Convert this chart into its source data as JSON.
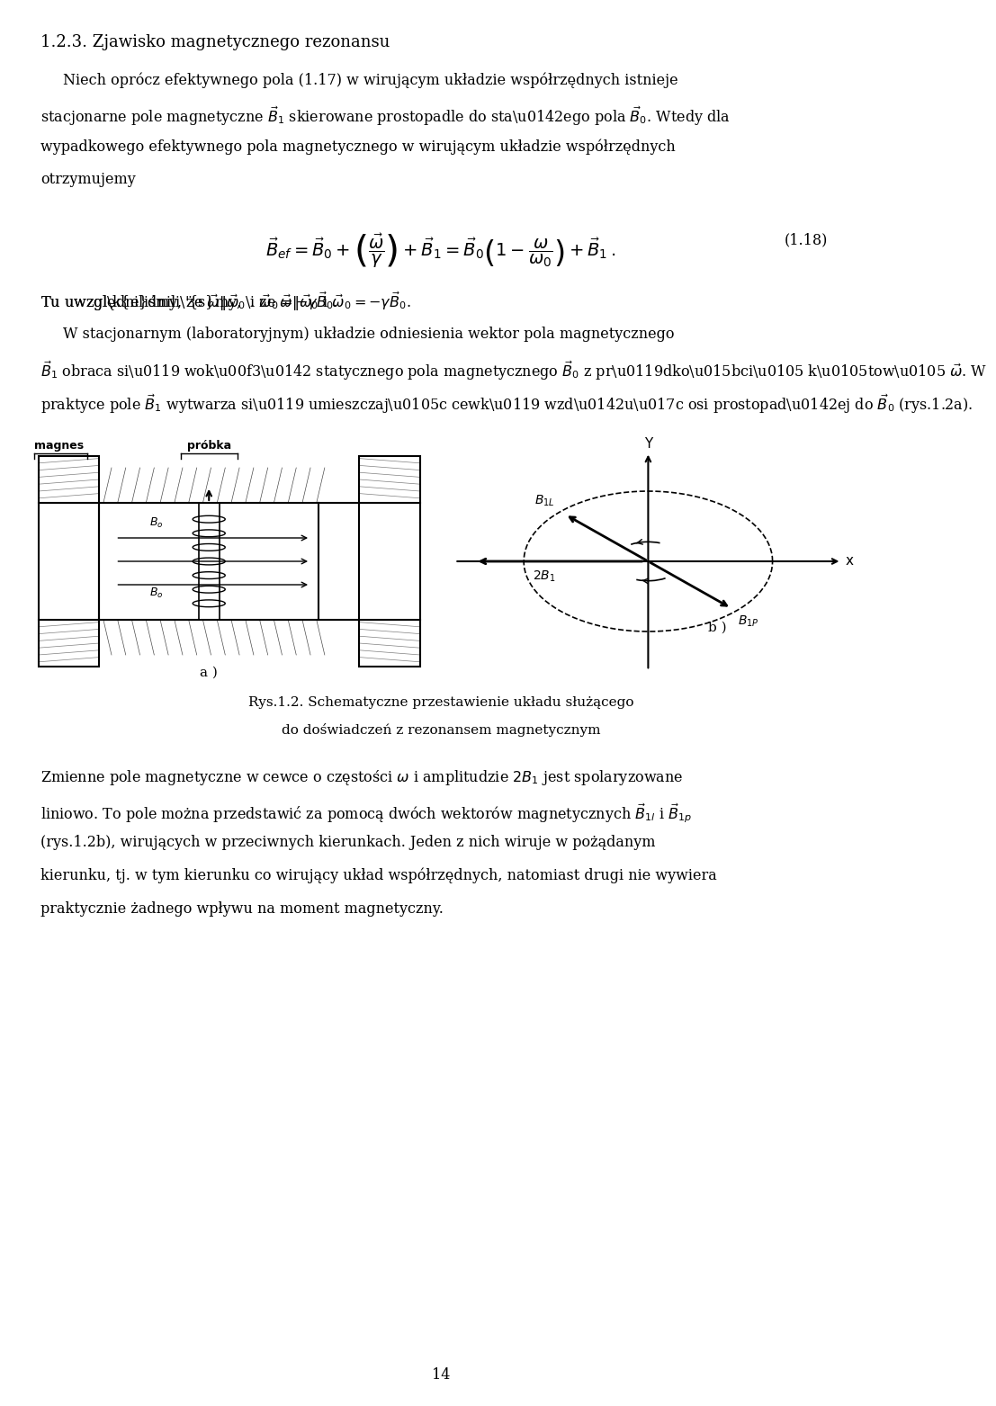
{
  "bg_color": "#ffffff",
  "text_color": "#000000",
  "fig_width": 9.6,
  "fig_height": 15.43,
  "title": "1.2.3. Zjawisko magnetycznego rezonansu",
  "para1": "Niech oprócz efektywnego pola (1.17) w wirującym układzie współrzędnych istnieje\nstacjonarne pole magnetyczne $\\vec{B}_1$ skierowane prostopadle do stałego pola $\\vec{B}_0$. Wtedy dla\nwypadkowego efektywnego pola magnetycznego w wirującym układzie współrzędnych\notrzymujemy",
  "eq1": "$\\vec{B}_{ef} = \\vec{B}_0 + \\left(\\dfrac{\\vec{\\omega}}{\\gamma}\\right) + \\vec{B}_1 = \\vec{B}_0\\left(1 - \\dfrac{\\omega}{\\omega_0}\\right) + \\vec{B}_1$.",
  "eq1_num": "(1.18)",
  "para2": "Tu uwzględniliśmy, że $\\vec{\\omega} \\| \\vec{\\omega}_0$ i $\\vec{\\omega}_0 = -\\gamma\\vec{B}_0$.",
  "para3": "W stacjonarnym (laboratoryjnym) układzie odniesienia wektor pola magnetycznego\n$\\vec{B}_1$ obraca się wokół statycznego pola magnetycznego $\\vec{B}_0$ z prędkością kątową $\\vec{\\omega}$. W\npraktyce pole $\\vec{B}_1$ wytwarza się umieszczając cewkę wzdłuż osi prostopadłej do $\\vec{B}_0$ (rys.1.2a).",
  "caption1": "Rys.1.2. Schematyczne przestawienie układu służącego",
  "caption2": "do doświadczeń z rezonansem magnetycznym",
  "para4": "Zmienne pole magnetyczne w cewce o częstości $\\omega$ i amplitudzie $2B_1$ jest spolaryzowane\nliniowo. To pole można przedstawić za pomocą dwóch wektorów magnetycznych $\\vec{B}_{1l}$ i $\\vec{B}_{1p}$\n(rys.1.2b), wirujących w przeciwnych kierunkach. Jeden z nich wiruje w pożądanym\nkierunku, tj. w tym kierunku co wirujący układ współrzędnych, natomiast drugi nie wywiera\npraktycznie żadnego wpływu na moment magnetyczny.",
  "page_num": "14",
  "label_magnes": "magnes",
  "label_probka": "próbka",
  "label_a": "a )",
  "label_b": "b )",
  "label_B0": "$B_o$",
  "label_B0b": "$B_o$",
  "label_2B1": "$2B_1$",
  "label_B1L": "$B_{1L}$",
  "label_B1P": "$B_{1P}$",
  "label_x": "x",
  "label_y": "Y"
}
